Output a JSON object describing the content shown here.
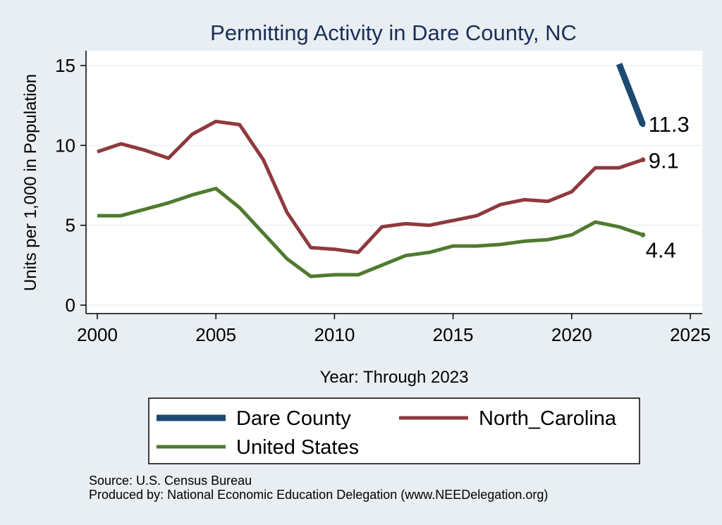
{
  "chart_data": {
    "type": "line",
    "title": "Permitting Activity in Dare County, NC",
    "xlabel": "Year: Through 2023",
    "ylabel": "Units per 1,000 in Population",
    "xlim": [
      2000,
      2025
    ],
    "ylim": [
      0,
      15
    ],
    "xticks": [
      2000,
      2005,
      2010,
      2015,
      2020,
      2025
    ],
    "yticks": [
      0,
      5,
      10,
      15
    ],
    "grid": true,
    "legend_position": "bottom",
    "series": [
      {
        "name": "Dare County",
        "color": "#1d4a72",
        "end_label": "11.3",
        "x": [
          2022,
          2023
        ],
        "values": [
          15.1,
          11.3
        ]
      },
      {
        "name": "North_Carolina",
        "color": "#8e3a3f",
        "end_label": "9.1",
        "x": [
          2000,
          2001,
          2002,
          2003,
          2004,
          2005,
          2006,
          2007,
          2008,
          2009,
          2010,
          2011,
          2012,
          2013,
          2014,
          2015,
          2016,
          2017,
          2018,
          2019,
          2020,
          2021,
          2022,
          2023
        ],
        "values": [
          9.6,
          10.1,
          9.7,
          9.2,
          10.7,
          11.5,
          11.3,
          9.1,
          5.8,
          3.6,
          3.5,
          3.3,
          4.9,
          5.1,
          5.0,
          5.3,
          5.6,
          6.3,
          6.6,
          6.5,
          7.1,
          8.6,
          8.6,
          9.1
        ]
      },
      {
        "name": "United States",
        "color": "#4f7a2f",
        "end_label": "4.4",
        "x": [
          2000,
          2001,
          2002,
          2003,
          2004,
          2005,
          2006,
          2007,
          2008,
          2009,
          2010,
          2011,
          2012,
          2013,
          2014,
          2015,
          2016,
          2017,
          2018,
          2019,
          2020,
          2021,
          2022,
          2023
        ],
        "values": [
          5.6,
          5.6,
          6.0,
          6.4,
          6.9,
          7.3,
          6.1,
          4.5,
          2.9,
          1.8,
          1.9,
          1.9,
          2.5,
          3.1,
          3.3,
          3.7,
          3.7,
          3.8,
          4.0,
          4.1,
          4.4,
          5.2,
          4.9,
          4.4
        ]
      }
    ]
  },
  "source": {
    "line1": "Source: U.S. Census Bureau",
    "line2": "Produced by: National Economic Education Delegation (www.NEEDelegation.org)"
  }
}
